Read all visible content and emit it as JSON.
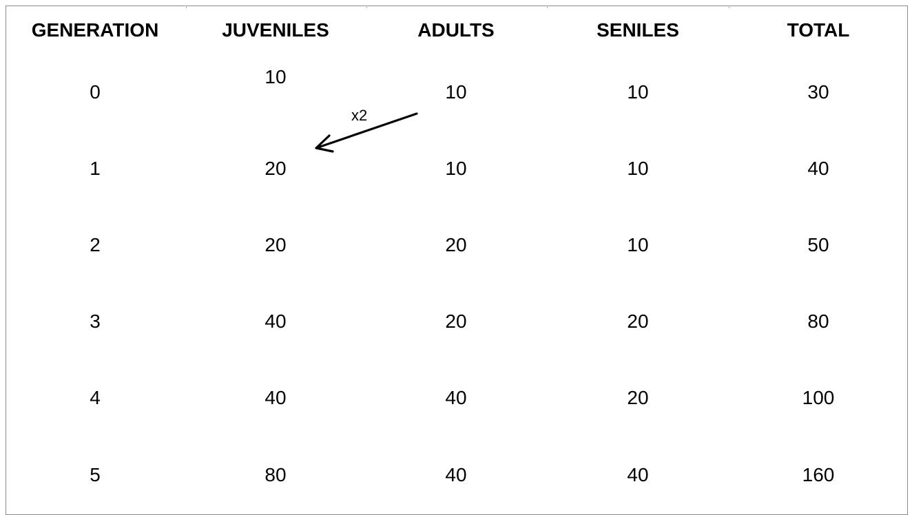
{
  "table": {
    "headers": [
      "GENERATION",
      "JUVENILES",
      "ADULTS",
      "SENILES",
      "TOTAL"
    ],
    "rows": [
      [
        "0",
        "10",
        "10",
        "10",
        "30"
      ],
      [
        "1",
        "20",
        "10",
        "10",
        "40"
      ],
      [
        "2",
        "20",
        "20",
        "10",
        "50"
      ],
      [
        "3",
        "40",
        "20",
        "20",
        "80"
      ],
      [
        "4",
        "40",
        "40",
        "20",
        "100"
      ],
      [
        "5",
        "80",
        "40",
        "40",
        "160"
      ]
    ]
  },
  "annotation": {
    "label": "x2"
  },
  "colors": {
    "text": "#000000",
    "border": "#8a8a8a",
    "background": "#ffffff"
  }
}
